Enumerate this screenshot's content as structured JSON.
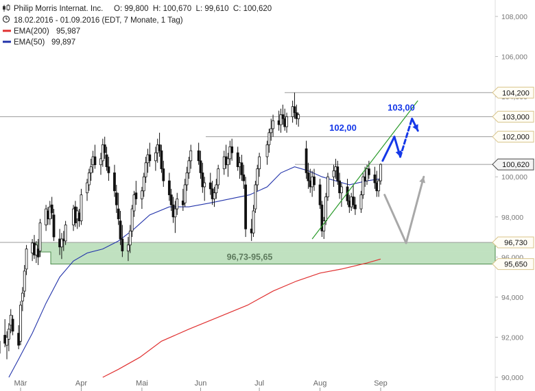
{
  "header": {
    "title": "Philip Morris Internat. Inc.",
    "ohlc": "O: 99,800  H: 100,670  L: 99,610  C: 100,620",
    "period": "18.02.2016 - 01.09.2016 (EDT, 7 Monate, 1 Tag)",
    "ema200_label": "EMA(200)",
    "ema200_value": "95,987",
    "ema50_label": "EMA(50)",
    "ema50_value": "99,897"
  },
  "colors": {
    "candle": "#111111",
    "ema200": "#e03030",
    "ema50": "#2233aa",
    "trendline": "#2a9a2a",
    "zone_fill": "#b5dcb5",
    "zone_border": "#4a8a4a",
    "arrow_blue": "#1538e8",
    "arrow_gray": "#a8a8a8",
    "level_line": "#9a9a9a",
    "tag_border": "#d8c48a",
    "tag_fill": "#fffdf5"
  },
  "chart_data": {
    "type": "candlestick",
    "x_labels": [
      "Mär",
      "Apr",
      "Mai",
      "Jun",
      "Jul",
      "Aug",
      "Sep"
    ],
    "y_ticks": [
      "90,000",
      "92,000",
      "94,000",
      "96,000",
      "98,000",
      "100,000",
      "102,000",
      "104,000",
      "106,000",
      "108,000"
    ],
    "ylim": [
      90,
      108
    ],
    "price_tags": [
      "104,200",
      "103,000",
      "102,000",
      "100,620",
      "96,730",
      "95,650"
    ],
    "annotations": {
      "target_high": "103,00",
      "target_mid": "102,00",
      "zone": "96,73-95,65"
    },
    "zone": {
      "low": 95.65,
      "high": 96.73
    },
    "levels": [
      104.2,
      103.0,
      102.0,
      100.62,
      96.73
    ],
    "trendline": {
      "from": {
        "x": "2016-07-28",
        "y": 96.9
      },
      "to": {
        "x": "2016-09-20",
        "y": 103.8
      }
    },
    "arrows": {
      "blue_up": {
        "from": {
          "x": "2016-09-02",
          "y": 100.8
        },
        "to": {
          "x": "2016-09-08",
          "y": 102.0
        }
      },
      "blue_down": {
        "from": {
          "x": "2016-09-08",
          "y": 102.0
        },
        "to": {
          "x": "2016-09-11",
          "y": 101.0
        }
      },
      "blue_dashed_up": {
        "from": {
          "x": "2016-09-11",
          "y": 101.0
        },
        "to": {
          "x": "2016-09-17",
          "y": 102.9
        }
      },
      "blue_dashed_down": {
        "from": {
          "x": "2016-09-17",
          "y": 102.9
        },
        "to": {
          "x": "2016-09-20",
          "y": 102.3
        }
      },
      "gray_down": {
        "from": {
          "x": "2016-09-03",
          "y": 99.1
        },
        "to": {
          "x": "2016-09-14",
          "y": 96.7
        }
      },
      "gray_up": {
        "from": {
          "x": "2016-09-14",
          "y": 96.7
        },
        "to": {
          "x": "2016-09-23",
          "y": 100.0
        }
      }
    },
    "ema200": [
      [
        "2016-04-12",
        90.0
      ],
      [
        "2016-04-20",
        90.4
      ],
      [
        "2016-05-01",
        91.0
      ],
      [
        "2016-05-12",
        91.8
      ],
      [
        "2016-05-26",
        92.4
      ],
      [
        "2016-06-10",
        93.0
      ],
      [
        "2016-06-25",
        93.6
      ],
      [
        "2016-07-08",
        94.3
      ],
      [
        "2016-07-20",
        94.8
      ],
      [
        "2016-08-01",
        95.2
      ],
      [
        "2016-08-12",
        95.4
      ],
      [
        "2016-08-25",
        95.7
      ],
      [
        "2016-09-01",
        95.9
      ]
    ],
    "ema50": [
      [
        "2016-02-24",
        90.0
      ],
      [
        "2016-02-29",
        90.9
      ],
      [
        "2016-03-07",
        92.2
      ],
      [
        "2016-03-14",
        93.7
      ],
      [
        "2016-03-21",
        95.0
      ],
      [
        "2016-03-28",
        95.8
      ],
      [
        "2016-04-04",
        96.2
      ],
      [
        "2016-04-12",
        96.4
      ],
      [
        "2016-04-20",
        96.8
      ],
      [
        "2016-04-28",
        97.4
      ],
      [
        "2016-05-06",
        98.1
      ],
      [
        "2016-05-16",
        98.5
      ],
      [
        "2016-05-26",
        98.5
      ],
      [
        "2016-06-06",
        98.7
      ],
      [
        "2016-06-16",
        98.9
      ],
      [
        "2016-06-26",
        99.1
      ],
      [
        "2016-07-05",
        99.5
      ],
      [
        "2016-07-12",
        100.2
      ],
      [
        "2016-07-19",
        100.5
      ],
      [
        "2016-07-26",
        100.3
      ],
      [
        "2016-08-02",
        100.0
      ],
      [
        "2016-08-09",
        99.8
      ],
      [
        "2016-08-16",
        99.6
      ],
      [
        "2016-08-25",
        99.8
      ],
      [
        "2016-09-01",
        99.9
      ]
    ],
    "candles": [
      [
        "2016-02-18",
        91.8,
        92.5,
        90.8,
        91.2
      ],
      [
        "2016-02-19",
        91.2,
        92.0,
        90.6,
        91.8
      ],
      [
        "2016-02-22",
        92.1,
        92.9,
        91.5,
        91.7
      ],
      [
        "2016-02-23",
        91.6,
        92.3,
        90.9,
        92.0
      ],
      [
        "2016-02-24",
        91.9,
        92.7,
        91.3,
        92.4
      ],
      [
        "2016-02-25",
        92.6,
        93.4,
        92.2,
        93.1
      ],
      [
        "2016-02-26",
        92.9,
        93.1,
        92.1,
        92.3
      ],
      [
        "2016-02-29",
        92.2,
        92.6,
        91.4,
        91.6
      ],
      [
        "2016-03-01",
        91.8,
        93.8,
        91.6,
        93.6
      ],
      [
        "2016-03-02",
        93.8,
        94.5,
        93.3,
        94.2
      ],
      [
        "2016-03-03",
        94.3,
        95.6,
        94.0,
        95.3
      ],
      [
        "2016-03-04",
        95.4,
        96.6,
        95.1,
        96.4
      ],
      [
        "2016-03-07",
        96.2,
        96.9,
        95.8,
        96.7
      ],
      [
        "2016-03-08",
        96.7,
        97.1,
        95.9,
        96.1
      ],
      [
        "2016-03-09",
        96.1,
        96.8,
        95.7,
        96.6
      ],
      [
        "2016-03-10",
        96.4,
        96.9,
        95.6,
        96.0
      ],
      [
        "2016-03-11",
        96.3,
        97.9,
        96.0,
        97.7
      ],
      [
        "2016-03-14",
        97.6,
        98.6,
        97.3,
        98.4
      ],
      [
        "2016-03-15",
        98.3,
        98.5,
        97.6,
        97.9
      ],
      [
        "2016-03-16",
        97.9,
        98.8,
        97.6,
        98.5
      ],
      [
        "2016-03-17",
        98.6,
        99.0,
        97.9,
        98.2
      ],
      [
        "2016-03-18",
        98.1,
        98.4,
        96.8,
        97.0
      ],
      [
        "2016-03-21",
        96.9,
        97.4,
        96.1,
        96.5
      ],
      [
        "2016-03-22",
        96.5,
        97.2,
        95.9,
        96.9
      ],
      [
        "2016-03-23",
        96.9,
        97.3,
        96.3,
        96.8
      ],
      [
        "2016-03-24",
        96.8,
        97.8,
        96.6,
        97.6
      ],
      [
        "2016-03-28",
        97.6,
        98.6,
        97.3,
        98.4
      ],
      [
        "2016-03-29",
        98.5,
        98.8,
        97.5,
        97.7
      ],
      [
        "2016-03-30",
        97.9,
        98.5,
        97.4,
        98.3
      ],
      [
        "2016-03-31",
        98.2,
        98.4,
        97.5,
        97.8
      ],
      [
        "2016-04-01",
        97.8,
        99.4,
        97.6,
        99.1
      ],
      [
        "2016-04-04",
        99.2,
        99.9,
        98.8,
        99.7
      ],
      [
        "2016-04-05",
        99.6,
        100.4,
        99.3,
        100.2
      ],
      [
        "2016-04-06",
        100.2,
        100.9,
        99.8,
        100.5
      ],
      [
        "2016-04-07",
        100.6,
        101.3,
        100.2,
        101.0
      ],
      [
        "2016-04-08",
        101.0,
        101.6,
        100.4,
        100.6
      ],
      [
        "2016-04-11",
        100.6,
        101.2,
        100.1,
        100.9
      ],
      [
        "2016-04-12",
        100.8,
        101.9,
        100.5,
        101.6
      ],
      [
        "2016-04-13",
        101.6,
        102.0,
        100.9,
        101.2
      ],
      [
        "2016-04-14",
        101.1,
        101.5,
        100.3,
        100.5
      ],
      [
        "2016-04-15",
        100.5,
        101.0,
        99.8,
        100.2
      ],
      [
        "2016-04-18",
        100.2,
        100.6,
        99.0,
        99.3
      ],
      [
        "2016-04-19",
        99.2,
        99.6,
        98.2,
        98.6
      ],
      [
        "2016-04-20",
        98.4,
        99.2,
        97.6,
        97.9
      ],
      [
        "2016-04-21",
        97.8,
        98.3,
        96.6,
        96.9
      ],
      [
        "2016-04-22",
        96.9,
        97.6,
        96.0,
        96.3
      ],
      [
        "2016-04-25",
        96.3,
        97.0,
        95.8,
        96.6
      ],
      [
        "2016-04-26",
        96.6,
        97.6,
        96.2,
        97.3
      ],
      [
        "2016-04-27",
        97.3,
        98.6,
        97.0,
        98.4
      ],
      [
        "2016-04-28",
        98.3,
        99.3,
        98.0,
        99.1
      ],
      [
        "2016-04-29",
        99.2,
        99.8,
        98.6,
        98.9
      ],
      [
        "2016-05-02",
        98.9,
        99.5,
        98.4,
        99.3
      ],
      [
        "2016-05-03",
        99.3,
        100.2,
        99.0,
        100.0
      ],
      [
        "2016-05-04",
        100.0,
        101.0,
        99.7,
        100.7
      ],
      [
        "2016-05-05",
        100.7,
        101.4,
        100.2,
        101.1
      ],
      [
        "2016-05-06",
        101.1,
        101.7,
        100.5,
        100.8
      ],
      [
        "2016-05-09",
        100.8,
        101.5,
        100.3,
        101.2
      ],
      [
        "2016-05-10",
        101.2,
        101.9,
        100.7,
        101.6
      ],
      [
        "2016-05-11",
        101.6,
        102.2,
        101.0,
        101.3
      ],
      [
        "2016-05-12",
        101.3,
        101.6,
        100.2,
        100.4
      ],
      [
        "2016-05-13",
        100.4,
        100.8,
        99.5,
        99.8
      ],
      [
        "2016-05-16",
        99.8,
        100.2,
        98.8,
        99.1
      ],
      [
        "2016-05-17",
        99.1,
        99.4,
        98.3,
        98.6
      ],
      [
        "2016-05-18",
        98.6,
        99.0,
        97.7,
        98.0
      ],
      [
        "2016-05-19",
        98.0,
        98.8,
        97.2,
        98.4
      ],
      [
        "2016-05-20",
        98.4,
        99.2,
        98.1,
        98.9
      ],
      [
        "2016-05-23",
        98.8,
        99.4,
        98.3,
        98.6
      ],
      [
        "2016-05-24",
        98.7,
        99.9,
        98.5,
        99.6
      ],
      [
        "2016-05-25",
        99.6,
        100.5,
        99.3,
        100.2
      ],
      [
        "2016-05-26",
        100.2,
        101.0,
        99.9,
        100.8
      ],
      [
        "2016-05-27",
        100.8,
        101.6,
        100.4,
        101.3
      ],
      [
        "2016-05-31",
        101.3,
        101.7,
        100.6,
        100.8
      ],
      [
        "2016-06-01",
        100.8,
        101.3,
        99.9,
        100.2
      ],
      [
        "2016-06-02",
        100.2,
        100.7,
        99.2,
        99.5
      ],
      [
        "2016-06-03",
        99.5,
        100.0,
        98.8,
        99.7
      ],
      [
        "2016-06-06",
        99.7,
        100.2,
        99.1,
        99.4
      ],
      [
        "2016-06-07",
        99.4,
        99.8,
        98.6,
        98.9
      ],
      [
        "2016-06-08",
        98.9,
        99.5,
        98.5,
        99.2
      ],
      [
        "2016-06-09",
        99.2,
        99.9,
        98.9,
        99.6
      ],
      [
        "2016-06-10",
        99.6,
        100.6,
        99.4,
        100.4
      ],
      [
        "2016-06-13",
        100.4,
        101.3,
        100.1,
        101.0
      ],
      [
        "2016-06-14",
        101.0,
        101.6,
        100.4,
        100.6
      ],
      [
        "2016-06-15",
        100.6,
        101.2,
        100.0,
        100.9
      ],
      [
        "2016-06-16",
        100.9,
        101.8,
        100.6,
        101.5
      ],
      [
        "2016-06-17",
        101.5,
        101.9,
        100.8,
        101.2
      ],
      [
        "2016-06-20",
        101.2,
        101.5,
        100.3,
        100.5
      ],
      [
        "2016-06-21",
        100.5,
        101.0,
        99.9,
        100.7
      ],
      [
        "2016-06-22",
        100.7,
        101.1,
        99.8,
        100.1
      ],
      [
        "2016-06-23",
        100.1,
        100.6,
        99.4,
        99.8
      ],
      [
        "2016-06-24",
        99.6,
        100.0,
        97.0,
        97.4
      ],
      [
        "2016-06-27",
        97.4,
        97.9,
        96.8,
        97.2
      ],
      [
        "2016-06-28",
        97.2,
        98.6,
        97.0,
        98.3
      ],
      [
        "2016-06-29",
        98.4,
        99.8,
        98.2,
        99.6
      ],
      [
        "2016-06-30",
        99.6,
        100.6,
        99.3,
        100.4
      ],
      [
        "2016-07-01",
        100.4,
        101.2,
        100.0,
        101.0
      ],
      [
        "2016-07-05",
        101.0,
        101.8,
        100.6,
        101.6
      ],
      [
        "2016-07-06",
        101.6,
        102.4,
        101.2,
        102.2
      ],
      [
        "2016-07-07",
        102.2,
        102.9,
        101.8,
        102.4
      ],
      [
        "2016-07-08",
        102.4,
        103.1,
        102.0,
        102.8
      ],
      [
        "2016-07-11",
        102.8,
        103.3,
        102.3,
        102.6
      ],
      [
        "2016-07-12",
        102.6,
        103.4,
        102.2,
        103.1
      ],
      [
        "2016-07-13",
        103.1,
        103.6,
        102.6,
        102.9
      ],
      [
        "2016-07-14",
        102.9,
        103.4,
        102.3,
        102.5
      ],
      [
        "2016-07-15",
        102.5,
        103.2,
        102.2,
        103.0
      ],
      [
        "2016-07-18",
        103.0,
        103.8,
        102.7,
        103.5
      ],
      [
        "2016-07-19",
        103.5,
        104.2,
        102.9,
        103.2
      ],
      [
        "2016-07-20",
        103.2,
        103.6,
        102.6,
        102.9
      ],
      [
        "2016-07-21",
        102.9,
        103.2,
        102.5,
        103.1
      ],
      [
        "2016-07-25",
        101.4,
        101.8,
        99.9,
        100.2
      ],
      [
        "2016-07-26",
        100.2,
        100.7,
        99.4,
        99.8
      ],
      [
        "2016-07-27",
        99.8,
        100.4,
        99.2,
        99.5
      ],
      [
        "2016-07-28",
        99.5,
        100.3,
        99.0,
        100.0
      ],
      [
        "2016-07-29",
        100.0,
        100.4,
        99.3,
        99.6
      ],
      [
        "2016-08-01",
        99.6,
        99.9,
        98.4,
        98.6
      ],
      [
        "2016-08-02",
        98.6,
        98.8,
        97.0,
        97.3
      ],
      [
        "2016-08-03",
        97.3,
        98.0,
        96.9,
        97.8
      ],
      [
        "2016-08-04",
        97.8,
        99.2,
        97.6,
        99.0
      ],
      [
        "2016-08-05",
        99.0,
        100.2,
        98.8,
        100.0
      ],
      [
        "2016-08-08",
        100.0,
        100.6,
        99.5,
        100.3
      ],
      [
        "2016-08-09",
        100.3,
        100.9,
        99.9,
        100.5
      ],
      [
        "2016-08-10",
        100.5,
        100.8,
        99.6,
        99.8
      ],
      [
        "2016-08-11",
        99.8,
        100.2,
        98.9,
        99.2
      ],
      [
        "2016-08-12",
        99.2,
        99.7,
        98.5,
        99.5
      ],
      [
        "2016-08-15",
        99.5,
        99.9,
        98.6,
        98.8
      ],
      [
        "2016-08-16",
        98.8,
        99.1,
        98.2,
        98.5
      ],
      [
        "2016-08-17",
        98.5,
        99.2,
        98.3,
        99.0
      ],
      [
        "2016-08-18",
        99.0,
        99.6,
        98.4,
        98.6
      ],
      [
        "2016-08-19",
        98.6,
        99.0,
        98.1,
        98.4
      ],
      [
        "2016-08-22",
        98.4,
        99.3,
        98.2,
        99.1
      ],
      [
        "2016-08-23",
        99.1,
        100.2,
        98.9,
        100.0
      ],
      [
        "2016-08-24",
        100.0,
        100.5,
        99.5,
        99.8
      ],
      [
        "2016-08-25",
        99.8,
        100.6,
        99.6,
        100.4
      ],
      [
        "2016-08-26",
        100.4,
        100.8,
        99.9,
        100.1
      ],
      [
        "2016-08-29",
        100.1,
        100.5,
        99.4,
        99.7
      ],
      [
        "2016-08-30",
        99.7,
        100.3,
        99.0,
        99.3
      ],
      [
        "2016-08-31",
        99.3,
        99.9,
        99.0,
        99.8
      ],
      [
        "2016-09-01",
        99.8,
        100.67,
        99.61,
        100.62
      ]
    ]
  }
}
